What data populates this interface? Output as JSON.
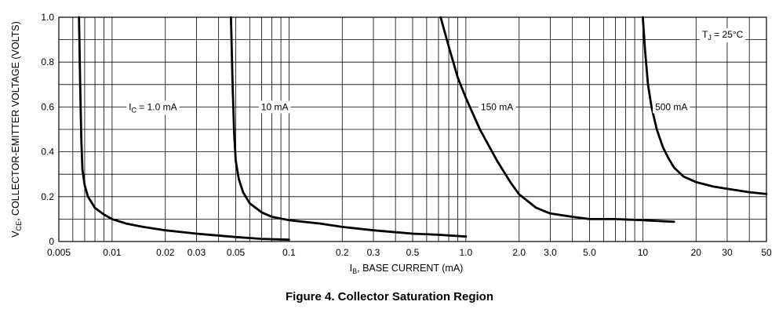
{
  "caption": "Figure 4. Collector Saturation Region",
  "chart_data": {
    "type": "line",
    "title": "",
    "xlabel": {
      "main": "I",
      "sub": "B",
      "rest": ", BASE CURRENT (mA)"
    },
    "ylabel": {
      "main": "V",
      "sub": "CE",
      "rest": ", COLLECTOR-EMITTER VOLTAGE (VOLTS)"
    },
    "x_scale": "log",
    "xlim": [
      0.005,
      50
    ],
    "ylim": [
      0,
      1.0
    ],
    "grid": true,
    "x_ticks": [
      {
        "value": 0.005,
        "label": "0.005"
      },
      {
        "value": 0.01,
        "label": "0.01"
      },
      {
        "value": 0.02,
        "label": "0.02"
      },
      {
        "value": 0.03,
        "label": "0.03"
      },
      {
        "value": 0.05,
        "label": "0.05"
      },
      {
        "value": 0.1,
        "label": "0.1"
      },
      {
        "value": 0.2,
        "label": "0.2"
      },
      {
        "value": 0.3,
        "label": "0.3"
      },
      {
        "value": 0.5,
        "label": "0.5"
      },
      {
        "value": 1.0,
        "label": "1.0"
      },
      {
        "value": 2.0,
        "label": "2.0"
      },
      {
        "value": 3.0,
        "label": "3.0"
      },
      {
        "value": 5.0,
        "label": "5.0"
      },
      {
        "value": 10,
        "label": "10"
      },
      {
        "value": 20,
        "label": "20"
      },
      {
        "value": 30,
        "label": "30"
      },
      {
        "value": 50,
        "label": "50"
      }
    ],
    "y_ticks": [
      {
        "value": 0,
        "label": "0"
      },
      {
        "value": 0.2,
        "label": "0.2"
      },
      {
        "value": 0.4,
        "label": "0.4"
      },
      {
        "value": 0.6,
        "label": "0.6"
      },
      {
        "value": 0.8,
        "label": "0.8"
      },
      {
        "value": 1.0,
        "label": "1.0"
      }
    ],
    "annotation": {
      "main": "T",
      "sub": "J",
      "rest": " = 25°C"
    },
    "series": [
      {
        "name": {
          "main": "I",
          "sub": "C",
          "rest": " = 1.0 mA"
        },
        "label_at": [
          0.017,
          0.6
        ],
        "points": [
          [
            0.0065,
            1.0
          ],
          [
            0.0066,
            0.7
          ],
          [
            0.0067,
            0.45
          ],
          [
            0.0068,
            0.32
          ],
          [
            0.007,
            0.25
          ],
          [
            0.0073,
            0.2
          ],
          [
            0.008,
            0.15
          ],
          [
            0.009,
            0.12
          ],
          [
            0.01,
            0.1
          ],
          [
            0.012,
            0.08
          ],
          [
            0.015,
            0.065
          ],
          [
            0.02,
            0.05
          ],
          [
            0.03,
            0.035
          ],
          [
            0.05,
            0.02
          ],
          [
            0.07,
            0.012
          ],
          [
            0.1,
            0.008
          ]
        ]
      },
      {
        "name": {
          "main": "",
          "sub": "",
          "rest": "10 mA"
        },
        "label_at": [
          0.083,
          0.6
        ],
        "points": [
          [
            0.047,
            1.0
          ],
          [
            0.048,
            0.7
          ],
          [
            0.049,
            0.48
          ],
          [
            0.05,
            0.36
          ],
          [
            0.052,
            0.28
          ],
          [
            0.055,
            0.22
          ],
          [
            0.06,
            0.17
          ],
          [
            0.07,
            0.13
          ],
          [
            0.08,
            0.11
          ],
          [
            0.1,
            0.095
          ],
          [
            0.15,
            0.08
          ],
          [
            0.2,
            0.065
          ],
          [
            0.3,
            0.05
          ],
          [
            0.5,
            0.035
          ],
          [
            0.7,
            0.03
          ],
          [
            1.0,
            0.022
          ]
        ]
      },
      {
        "name": {
          "main": "",
          "sub": "",
          "rest": "150 mA"
        },
        "label_at": [
          1.5,
          0.6
        ],
        "points": [
          [
            0.72,
            1.0
          ],
          [
            0.8,
            0.87
          ],
          [
            0.9,
            0.73
          ],
          [
            1.0,
            0.64
          ],
          [
            1.2,
            0.5
          ],
          [
            1.5,
            0.36
          ],
          [
            1.8,
            0.26
          ],
          [
            2.0,
            0.21
          ],
          [
            2.5,
            0.15
          ],
          [
            3.0,
            0.125
          ],
          [
            4.0,
            0.11
          ],
          [
            5.0,
            0.1
          ],
          [
            7.0,
            0.1
          ],
          [
            10.0,
            0.095
          ],
          [
            15.0,
            0.088
          ]
        ]
      },
      {
        "name": {
          "main": "",
          "sub": "",
          "rest": "500 mA"
        },
        "label_at": [
          14.5,
          0.6
        ],
        "points": [
          [
            10.0,
            1.0
          ],
          [
            10.3,
            0.85
          ],
          [
            10.7,
            0.7
          ],
          [
            11.2,
            0.6
          ],
          [
            12.0,
            0.5
          ],
          [
            13.0,
            0.42
          ],
          [
            14.0,
            0.37
          ],
          [
            15.0,
            0.33
          ],
          [
            17.0,
            0.29
          ],
          [
            20.0,
            0.265
          ],
          [
            25.0,
            0.245
          ],
          [
            30.0,
            0.235
          ],
          [
            40.0,
            0.22
          ],
          [
            50.0,
            0.212
          ]
        ]
      }
    ]
  }
}
